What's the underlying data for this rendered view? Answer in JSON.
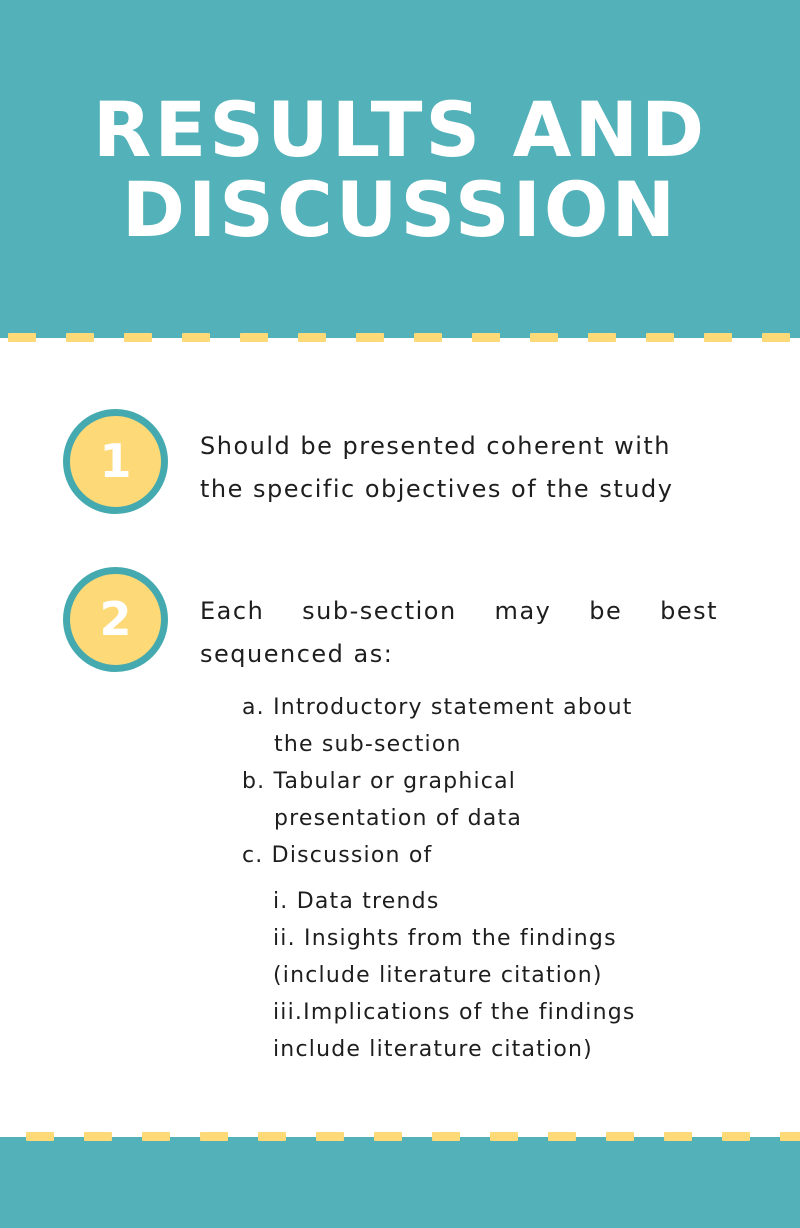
{
  "header": {
    "title_line1": "RESULTS AND",
    "title_line2": "DISCUSSION"
  },
  "colors": {
    "teal": "#52b1b9",
    "yellow": "#fdd977",
    "badge_border": "#45aaaf",
    "text": "#1e1e1e"
  },
  "points": [
    {
      "number": "1",
      "line1": "Should be presented coherent with",
      "line2": "the specific objectives of the study"
    },
    {
      "number": "2",
      "line1": "Each sub-section may be best",
      "line2": "sequenced as:"
    }
  ],
  "sublist": [
    {
      "line1": "a. Introductory statement about",
      "line2": "the sub-section"
    },
    {
      "line1": "b. Tabular or graphical",
      "line2": "presentation of data"
    },
    {
      "line1": "c.  Discussion of"
    }
  ],
  "discussion_items": [
    {
      "line1": "i. Data trends"
    },
    {
      "line1": "ii. Insights from the findings",
      "line2": "(include literature citation)"
    },
    {
      "line1": "iii.Implications of the findings",
      "line2": "include literature citation)"
    }
  ]
}
